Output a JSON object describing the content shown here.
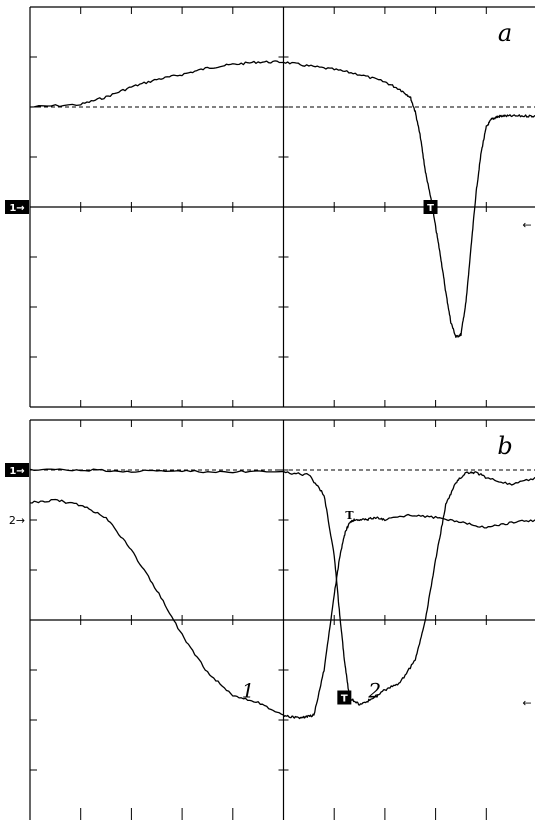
{
  "chart_data": [
    {
      "type": "line",
      "panel_label": "a",
      "x_divisions": 10,
      "y_divisions": 8,
      "xlim": [
        0,
        10.5
      ],
      "ylim": [
        -4,
        4
      ],
      "grid": false,
      "reference_level": 2.0,
      "channel_marker": {
        "label": "1→",
        "level": 0
      },
      "trigger_marker": {
        "label": "T",
        "x": 7.9,
        "y": 0
      },
      "right_arrow": {
        "label": "←",
        "level": -0.35
      },
      "series": [
        {
          "x": [
            0,
            1,
            1.5,
            2,
            2.5,
            3,
            3.5,
            4,
            4.5,
            5,
            5.5,
            6,
            6.5,
            7,
            7.3,
            7.5,
            7.6,
            7.7,
            7.8,
            7.9,
            8.0,
            8.1,
            8.2,
            8.3,
            8.4,
            8.5,
            8.6,
            8.7,
            8.8,
            8.9,
            9.0,
            9.1,
            9.2,
            9.3,
            9.5,
            9.8,
            10.0,
            10.2,
            10.5
          ],
          "y": [
            2.0,
            2.05,
            2.2,
            2.4,
            2.55,
            2.65,
            2.78,
            2.85,
            2.9,
            2.9,
            2.82,
            2.75,
            2.65,
            2.5,
            2.35,
            2.2,
            1.9,
            1.4,
            0.7,
            0.2,
            -0.4,
            -1.0,
            -1.7,
            -2.3,
            -2.6,
            -2.55,
            -1.9,
            -0.8,
            0.3,
            1.1,
            1.6,
            1.75,
            1.8,
            1.82,
            1.82,
            1.82,
            1.82,
            1.82,
            1.82
          ]
        }
      ]
    },
    {
      "type": "line",
      "panel_label": "b",
      "x_divisions": 10,
      "y_divisions": 8,
      "xlim": [
        0,
        10.5
      ],
      "ylim": [
        -4,
        4
      ],
      "grid": false,
      "reference_level": 3.0,
      "channel_markers": [
        {
          "label": "1→",
          "level": 3.0,
          "boxed": true
        },
        {
          "label": "2→",
          "level": 2.0,
          "boxed": false
        }
      ],
      "trigger_markers": [
        {
          "label": "T",
          "x": 6.3,
          "y": 2.1,
          "boxed": false
        },
        {
          "label": "T",
          "x": 6.2,
          "y": -1.55,
          "boxed": true
        }
      ],
      "right_arrow": {
        "label": "←",
        "level": -1.65
      },
      "series": [
        {
          "name": "1",
          "x": [
            0,
            0.5,
            1,
            1.5,
            2,
            2.5,
            3,
            3.5,
            4,
            4.5,
            5,
            5.2,
            5.4,
            5.6,
            5.8,
            6.0,
            6.1,
            6.2,
            6.3,
            6.4,
            6.6,
            6.8,
            7.0,
            7.5,
            8.0,
            8.5,
            9.0,
            9.5,
            10.0,
            10.5
          ],
          "y": [
            2.35,
            2.4,
            2.3,
            2.05,
            1.4,
            0.6,
            -0.3,
            -1.05,
            -1.5,
            -1.65,
            -1.9,
            -1.95,
            -1.95,
            -1.9,
            -1.0,
            0.5,
            1.2,
            1.7,
            1.95,
            2.0,
            2.0,
            2.05,
            2.0,
            2.1,
            2.05,
            1.95,
            1.85,
            1.95,
            2.0,
            2.15
          ]
        },
        {
          "name": "2",
          "x": [
            0,
            1,
            2,
            3,
            4,
            5,
            5.5,
            5.8,
            6.0,
            6.1,
            6.2,
            6.3,
            6.5,
            6.7,
            7.0,
            7.3,
            7.6,
            7.8,
            8.0,
            8.2,
            8.4,
            8.6,
            8.8,
            9.0,
            9.5,
            10.0,
            10.5
          ],
          "y": [
            3.0,
            3.0,
            2.98,
            2.97,
            2.97,
            2.95,
            2.9,
            2.5,
            1.3,
            0.2,
            -0.8,
            -1.55,
            -1.7,
            -1.6,
            -1.4,
            -1.25,
            -0.8,
            0.0,
            1.2,
            2.3,
            2.75,
            2.95,
            2.95,
            2.85,
            2.7,
            2.85,
            2.9
          ]
        }
      ],
      "series_labels": [
        {
          "text": "1",
          "x": 4.3,
          "y": -1.55
        },
        {
          "text": "2",
          "x": 6.8,
          "y": -1.55
        }
      ]
    }
  ]
}
